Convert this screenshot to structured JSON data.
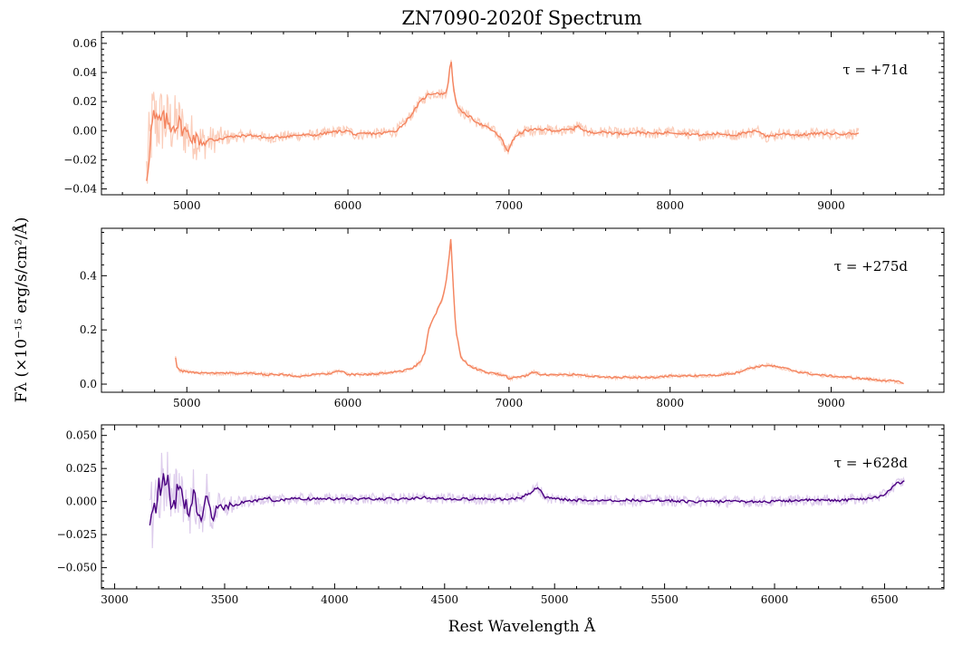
{
  "chart_data": {
    "type": "line",
    "title": "ZN7090-2020f Spectrum",
    "xlabel": "Rest Wavelength Å",
    "ylabel": "Fλ (×10⁻¹⁵ erg/s/cm²/Å)",
    "panels": [
      {
        "annotation": "τ =  +71d",
        "color": "#f4845f",
        "raw_color": "#fbc8b2",
        "xlim": [
          4470,
          9700
        ],
        "ylim": [
          -0.044,
          0.068
        ],
        "xticks": [
          5000,
          6000,
          7000,
          8000,
          9000
        ],
        "xtick_labels": [
          "5000",
          "6000",
          "7000",
          "8000",
          "9000"
        ],
        "yticks": [
          -0.04,
          -0.02,
          0.0,
          0.02,
          0.04,
          0.06
        ],
        "ytick_labels": [
          "−0.04",
          "−0.02",
          "0.00",
          "0.02",
          "0.04",
          "0.06"
        ],
        "noisy": true,
        "x": [
          4750,
          4770,
          4790,
          4810,
          4840,
          4870,
          4900,
          4950,
          5000,
          5050,
          5100,
          5150,
          5200,
          5300,
          5400,
          5500,
          5600,
          5700,
          5800,
          5900,
          6000,
          6050,
          6100,
          6200,
          6300,
          6350,
          6400,
          6450,
          6500,
          6550,
          6600,
          6620,
          6630,
          6640,
          6650,
          6670,
          6700,
          6750,
          6800,
          6850,
          6900,
          6950,
          6980,
          6995,
          7010,
          7050,
          7100,
          7200,
          7300,
          7400,
          7430,
          7460,
          7500,
          7600,
          7700,
          7800,
          7900,
          8000,
          8100,
          8200,
          8300,
          8400,
          8500,
          8550,
          8600,
          8650,
          8700,
          8800,
          8900,
          9000,
          9100,
          9170
        ],
        "y": [
          -0.03,
          -0.01,
          0.01,
          0.005,
          0.007,
          0.006,
          0.004,
          0.005,
          -0.002,
          -0.005,
          -0.008,
          -0.007,
          -0.005,
          -0.004,
          -0.003,
          -0.005,
          -0.004,
          -0.003,
          -0.003,
          -0.001,
          0.0,
          -0.003,
          -0.002,
          -0.002,
          0.0,
          0.005,
          0.012,
          0.02,
          0.025,
          0.026,
          0.025,
          0.03,
          0.04,
          0.05,
          0.035,
          0.02,
          0.013,
          0.01,
          0.006,
          0.003,
          0.0,
          -0.005,
          -0.012,
          -0.014,
          -0.009,
          -0.003,
          0.0,
          0.001,
          0.0,
          0.001,
          0.004,
          0.0,
          -0.001,
          -0.001,
          -0.002,
          -0.001,
          -0.002,
          -0.001,
          -0.002,
          -0.003,
          -0.002,
          -0.003,
          -0.001,
          0.0,
          -0.004,
          -0.003,
          -0.002,
          -0.003,
          -0.002,
          -0.002,
          -0.002,
          -0.002
        ]
      },
      {
        "annotation": "τ =  +275d",
        "color": "#f4845f",
        "raw_color": "#fbc8b2",
        "xlim": [
          4470,
          9700
        ],
        "ylim": [
          -0.03,
          0.575
        ],
        "xticks": [
          5000,
          6000,
          7000,
          8000,
          9000
        ],
        "xtick_labels": [
          "5000",
          "6000",
          "7000",
          "8000",
          "9000"
        ],
        "yticks": [
          0.0,
          0.2,
          0.4
        ],
        "ytick_labels": [
          "0.0",
          "0.2",
          "0.4"
        ],
        "noisy": false,
        "x": [
          4930,
          4940,
          4960,
          5000,
          5100,
          5200,
          5300,
          5400,
          5500,
          5600,
          5700,
          5800,
          5900,
          5950,
          6000,
          6100,
          6200,
          6300,
          6350,
          6400,
          6450,
          6480,
          6500,
          6530,
          6560,
          6590,
          6610,
          6625,
          6635,
          6640,
          6650,
          6670,
          6700,
          6750,
          6800,
          6850,
          6900,
          6950,
          6980,
          7000,
          7050,
          7100,
          7150,
          7200,
          7300,
          7400,
          7500,
          7600,
          7700,
          7800,
          7900,
          8000,
          8100,
          8200,
          8300,
          8400,
          8500,
          8550,
          8600,
          8700,
          8800,
          8900,
          9000,
          9100,
          9200,
          9300,
          9400,
          9450
        ],
        "y": [
          0.1,
          0.06,
          0.05,
          0.045,
          0.04,
          0.04,
          0.04,
          0.04,
          0.035,
          0.035,
          0.03,
          0.035,
          0.04,
          0.05,
          0.035,
          0.035,
          0.04,
          0.045,
          0.05,
          0.06,
          0.08,
          0.12,
          0.2,
          0.24,
          0.28,
          0.32,
          0.38,
          0.45,
          0.5,
          0.55,
          0.4,
          0.2,
          0.1,
          0.07,
          0.055,
          0.045,
          0.04,
          0.035,
          0.03,
          0.02,
          0.025,
          0.03,
          0.045,
          0.035,
          0.035,
          0.035,
          0.03,
          0.025,
          0.025,
          0.025,
          0.025,
          0.03,
          0.03,
          0.03,
          0.035,
          0.04,
          0.06,
          0.065,
          0.07,
          0.06,
          0.045,
          0.035,
          0.03,
          0.025,
          0.02,
          0.015,
          0.01,
          0.005
        ]
      },
      {
        "annotation": "τ =  +628d",
        "color": "#4b0082",
        "raw_color": "#d9c6ea",
        "xlim": [
          2940,
          6770
        ],
        "ylim": [
          -0.066,
          0.058
        ],
        "xticks": [
          3000,
          3500,
          4000,
          4500,
          5000,
          5500,
          6000,
          6500
        ],
        "xtick_labels": [
          "3000",
          "3500",
          "4000",
          "4500",
          "5000",
          "5500",
          "6000",
          "6500"
        ],
        "yticks": [
          -0.05,
          -0.025,
          0.0,
          0.025,
          0.05
        ],
        "ytick_labels": [
          "−0.050",
          "−0.025",
          "0.000",
          "0.025",
          "0.050"
        ],
        "noisy": true,
        "x": [
          3160,
          3180,
          3200,
          3220,
          3240,
          3260,
          3280,
          3300,
          3320,
          3340,
          3360,
          3380,
          3400,
          3420,
          3440,
          3460,
          3500,
          3550,
          3600,
          3650,
          3700,
          3720,
          3750,
          3800,
          3900,
          4000,
          4100,
          4200,
          4300,
          4400,
          4500,
          4600,
          4700,
          4800,
          4850,
          4900,
          4920,
          4940,
          4960,
          5000,
          5100,
          5200,
          5300,
          5400,
          5500,
          5600,
          5700,
          5800,
          5900,
          6000,
          6100,
          6200,
          6300,
          6400,
          6450,
          6500,
          6530,
          6560,
          6590
        ],
        "y": [
          -0.01,
          -0.005,
          0.008,
          0.015,
          0.02,
          -0.01,
          0.005,
          0.012,
          0.0,
          -0.008,
          0.01,
          -0.015,
          -0.01,
          0.008,
          -0.015,
          -0.005,
          -0.004,
          -0.002,
          0.0,
          0.001,
          0.003,
          0.0,
          0.001,
          0.002,
          0.002,
          0.002,
          0.002,
          0.002,
          0.002,
          0.003,
          0.002,
          0.002,
          0.002,
          0.002,
          0.003,
          0.008,
          0.011,
          0.007,
          0.003,
          0.002,
          0.001,
          0.001,
          0.001,
          0.001,
          0.001,
          0.0,
          0.0,
          0.0,
          0.0,
          0.0,
          0.001,
          0.001,
          0.001,
          0.002,
          0.003,
          0.005,
          0.01,
          0.014,
          0.015
        ]
      }
    ]
  }
}
